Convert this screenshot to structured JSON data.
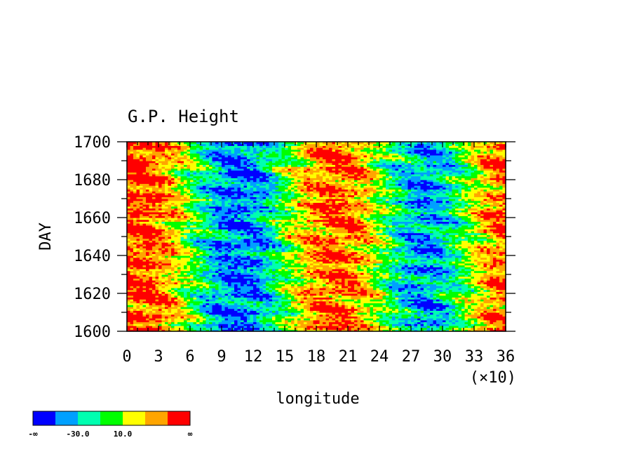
{
  "chart_data": {
    "type": "heatmap",
    "title": "G.P. Height",
    "xlabel": "longitude",
    "ylabel": "DAY",
    "x_multiplier_label": "(×10)",
    "x_range": [
      0,
      36
    ],
    "y_range": [
      1600,
      1700
    ],
    "x_ticks": [
      0,
      3,
      6,
      9,
      12,
      15,
      18,
      21,
      24,
      27,
      30,
      33,
      36
    ],
    "y_ticks": [
      1600,
      1620,
      1640,
      1660,
      1680,
      1700
    ],
    "colorbar": {
      "colors": [
        "#0000ff",
        "#00a0ff",
        "#00ffb0",
        "#00ff00",
        "#ffff00",
        "#ffa500",
        "#ff0000"
      ],
      "labels": [
        "-∞",
        "-30.0",
        "10.0",
        "∞"
      ]
    },
    "pattern": {
      "description_bands": "warm bands near longitude 0-60 and 170-230; cool bands near 80-150 and 250-330",
      "warm_centers_x10": [
        1.5,
        20.0,
        36.0
      ],
      "cool_centers_x10": [
        10.5,
        28.5
      ]
    }
  }
}
